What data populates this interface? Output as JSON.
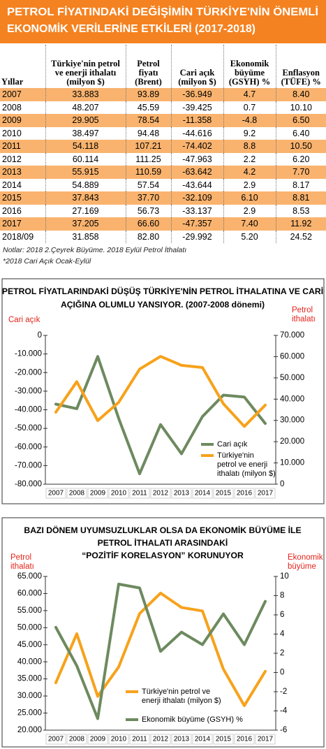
{
  "header": {
    "title": "PETROL FİYATINDAKİ DEĞİŞİMİN TÜRKİYE'NİN ÖNEMLİ EKONOMİK VERİLERİNE ETKİLERİ (2017-2018)"
  },
  "table": {
    "columns": [
      "Yıllar",
      "Türkiye'nin petrol ve enerji ithalatı (milyon $)",
      "Petrol fiyatı (Brent)",
      "Cari açık (milyon $)",
      "Ekonomik büyüme (GSYH) %",
      "Enflasyon (TÜFE) %"
    ],
    "rows": [
      [
        "2007",
        "33.883",
        "93.89",
        "-36.949",
        "4.7",
        "8.40"
      ],
      [
        "2008",
        "48.207",
        "45.59",
        "-39.425",
        "0.7",
        "10.10"
      ],
      [
        "2009",
        "29.905",
        "78.54",
        "-11.358",
        "-4.8",
        "6.50"
      ],
      [
        "2010",
        "38.497",
        "94.48",
        "-44.616",
        "9.2",
        "6.40"
      ],
      [
        "2011",
        "54.118",
        "107.21",
        "-74.402",
        "8.8",
        "10.50"
      ],
      [
        "2012",
        "60.114",
        "111.25",
        "-47.963",
        "2.2",
        "6.20"
      ],
      [
        "2013",
        "55.915",
        "110.59",
        "-63.642",
        "4.2",
        "7.70"
      ],
      [
        "2014",
        "54.889",
        "57.54",
        "-43.644",
        "2.9",
        "8.17"
      ],
      [
        "2015",
        "37.843",
        "37.70",
        "-32.109",
        "6.10",
        "8.81"
      ],
      [
        "2016",
        "27.169",
        "56.73",
        "-33.137",
        "2.9",
        "8.53"
      ],
      [
        "2017",
        "37.205",
        "66.60",
        "-47.357",
        "7.40",
        "11.92"
      ],
      [
        "2018/09",
        "31.858",
        "82.80",
        "-29.992",
        "5.20",
        "24.52"
      ]
    ]
  },
  "notes": [
    "Notlar: 2018 2.Çeyrek Büyüme. 2018 Eylül Petrol İthalatı",
    "*2018 Cari Açık Ocak-Eylül"
  ],
  "chart_data": [
    {
      "type": "line",
      "title": "PETROL FİYATLARINDAKİ DÜŞÜŞ TÜRKİYE'NİN PETROL İTHALATINA VE CARİ AÇIĞINA OLUMLU YANSIYOR. (2007-2008 dönemi)",
      "y_label": "Cari açık",
      "y2_label": "Petrol ithalatı",
      "categories": [
        "2007",
        "2008",
        "2009",
        "2010",
        "2011",
        "2012",
        "2013",
        "2014",
        "2015",
        "2016",
        "2017"
      ],
      "ylim": [
        -80000,
        0
      ],
      "yticks": [
        0,
        {
          "value": -10000,
          "label": "-10.000"
        },
        {
          "value": -20000,
          "label": "-20.000"
        },
        {
          "value": -30000,
          "label": "-30.000"
        },
        {
          "value": -40000,
          "label": "-40.000"
        },
        {
          "value": -50000,
          "label": "-50.000"
        },
        {
          "value": -60000,
          "label": "-60.000"
        },
        {
          "value": -70000,
          "label": "-70.000"
        },
        {
          "value": -80000,
          "label": "-80.000"
        }
      ],
      "y2lim": [
        0,
        70000
      ],
      "y2ticks": [
        {
          "value": 70000,
          "label": "70.000"
        },
        {
          "value": 60000,
          "label": "60.000"
        },
        {
          "value": 50000,
          "label": "50.000"
        },
        {
          "value": 40000,
          "label": "40.000"
        },
        {
          "value": 30000,
          "label": "30.000"
        },
        {
          "value": 20000,
          "label": "20.000"
        },
        {
          "value": 10000,
          "label": "10.000"
        },
        0
      ],
      "series": [
        {
          "name": "Cari açık",
          "color": "#6d8a5f",
          "values": [
            -36949,
            -39425,
            -11358,
            -44616,
            -74402,
            -47963,
            -63642,
            -43644,
            -32109,
            -33137,
            -47357
          ]
        },
        {
          "name": "Türkiye'nin petrol ve enerji ithalatı (milyon $)",
          "color": "#f7a21b",
          "axis": "y2",
          "values": [
            33883,
            48207,
            29905,
            38497,
            54118,
            60114,
            55915,
            54889,
            37843,
            27169,
            37205
          ]
        }
      ]
    },
    {
      "type": "line",
      "title": "BAZI DÖNEM UYUMSUZLUKLAR OLSA DA EKONOMİK BÜYÜME İLE PETROL İTHALATI ARASINDAKİ “POZİTİF KORELASYON” KORUNUYOR",
      "y_label": "Petrol ithalatı",
      "y2_label": "Ekonomik büyüme",
      "categories": [
        "2007",
        "2008",
        "2009",
        "2010",
        "2011",
        "2012",
        "2013",
        "2014",
        "2015",
        "2016",
        "2017"
      ],
      "ylim": [
        20000,
        65000
      ],
      "yticks": [
        {
          "value": 65000,
          "label": "65.000"
        },
        {
          "value": 60000,
          "label": "60.000"
        },
        {
          "value": 55000,
          "label": "55.000"
        },
        {
          "value": 50000,
          "label": "50.000"
        },
        {
          "value": 45000,
          "label": "45.000"
        },
        {
          "value": 40000,
          "label": "40.000"
        },
        {
          "value": 35000,
          "label": "35.000"
        },
        {
          "value": 30000,
          "label": "30.000"
        },
        {
          "value": 25000,
          "label": "25.000"
        },
        {
          "value": 20000,
          "label": "20.000"
        }
      ],
      "y2lim": [
        -6,
        10
      ],
      "y2ticks": [
        10,
        8,
        6,
        4,
        2,
        0,
        -2,
        -4,
        -6
      ],
      "series": [
        {
          "name": "Türkiye'nin petrol ve enerji ithalatı (milyon $)",
          "color": "#f7a21b",
          "values": [
            33883,
            48207,
            29905,
            38497,
            54118,
            60114,
            55915,
            54889,
            37843,
            27169,
            37205
          ]
        },
        {
          "name": "Ekonomik büyüme (GSYH) %",
          "color": "#6d8a5f",
          "axis": "y2",
          "values": [
            4.7,
            0.7,
            -4.8,
            9.2,
            8.8,
            2.2,
            4.2,
            2.9,
            6.1,
            2.9,
            7.4
          ]
        }
      ]
    }
  ]
}
